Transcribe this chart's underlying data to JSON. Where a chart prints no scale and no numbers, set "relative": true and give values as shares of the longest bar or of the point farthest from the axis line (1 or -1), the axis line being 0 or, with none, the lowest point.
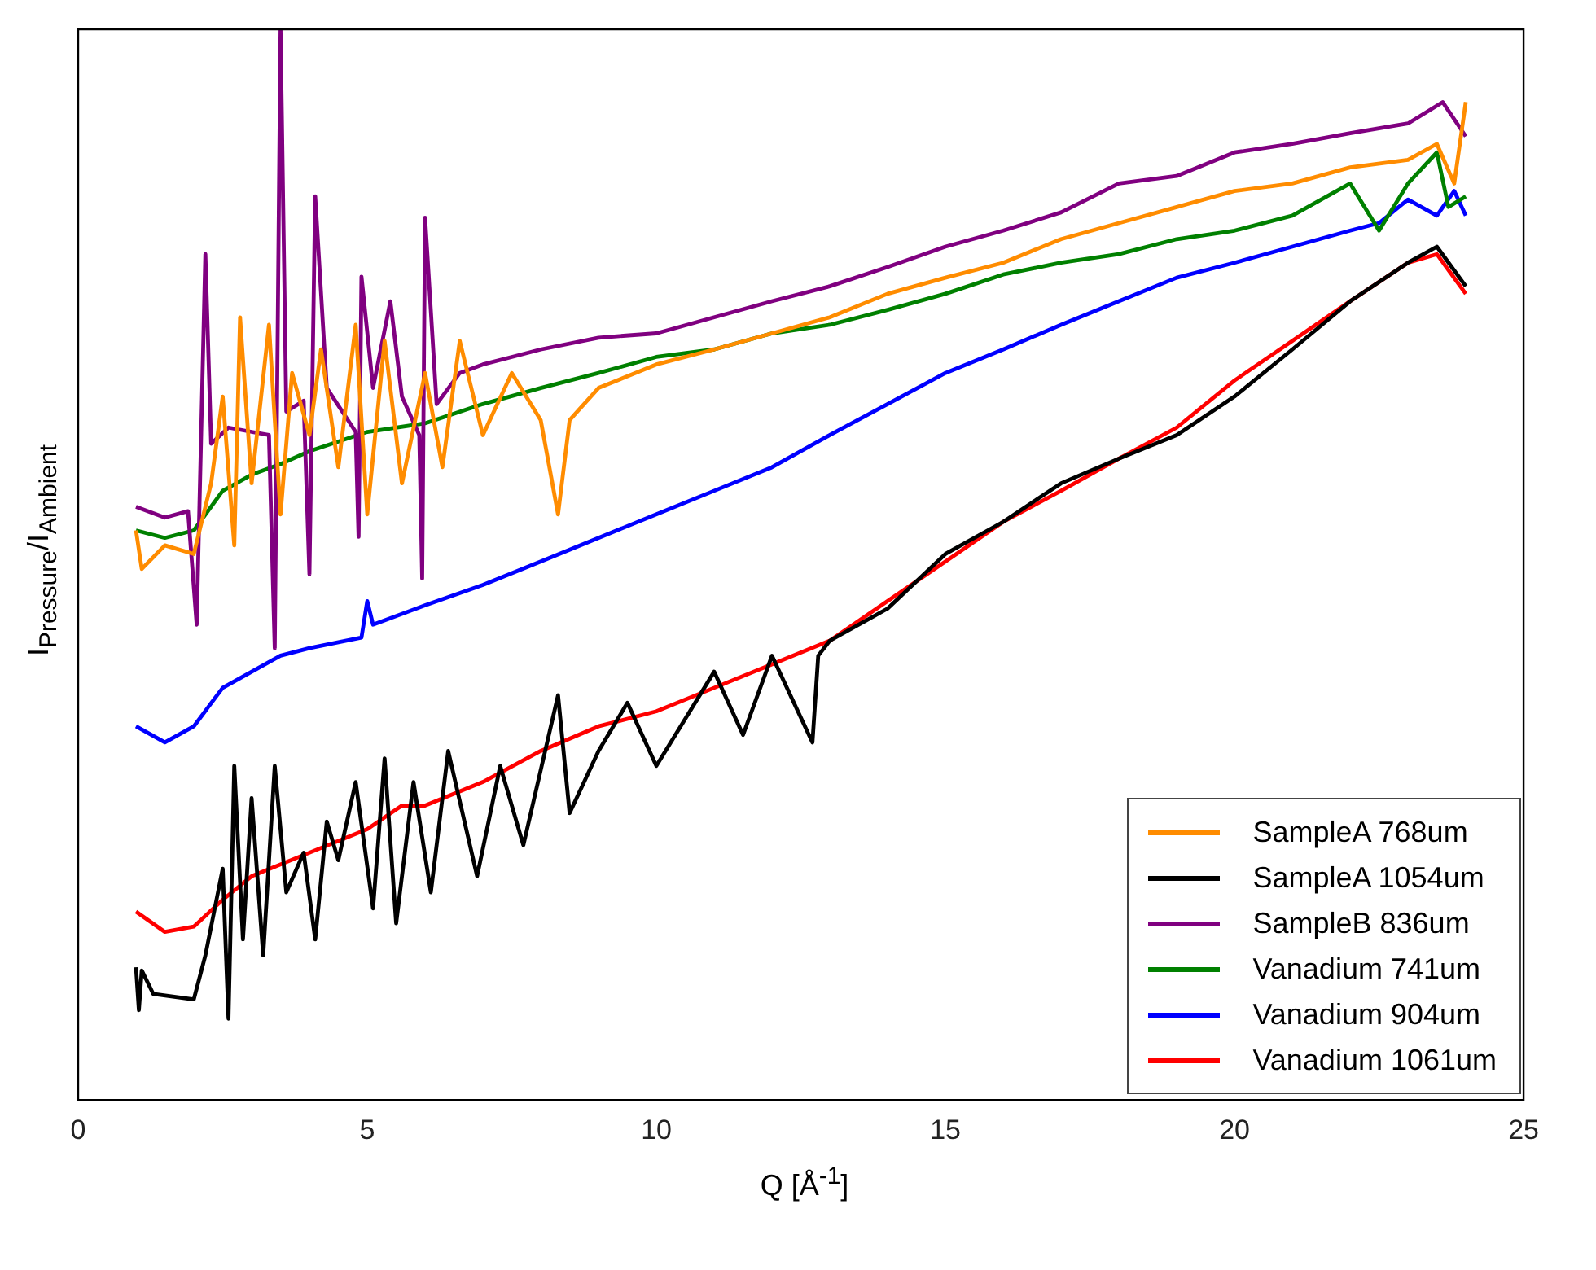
{
  "chart_data": {
    "type": "line",
    "relative": true,
    "xlabel": "Q [Å$^{-1}$]",
    "ylabel": "I$_{Pressure}$/I$_{Ambient}$",
    "xlim": [
      0,
      25
    ],
    "xticks": [
      0,
      5,
      10,
      15,
      20,
      25
    ],
    "grid": false,
    "legend": "bottom right",
    "marker": "none",
    "line_style": "solid",
    "series": [
      {
        "name": "SampleA 768um",
        "color": "#ff8c00",
        "x": [
          1,
          1.1,
          1.5,
          2,
          2.3,
          2.5,
          2.7,
          2.8,
          3,
          3.3,
          3.5,
          3.7,
          4,
          4.2,
          4.5,
          4.8,
          5,
          5.3,
          5.6,
          6,
          6.3,
          6.6,
          7,
          7.5,
          8,
          8.3,
          8.5,
          9,
          10,
          11,
          12,
          13,
          14,
          15,
          16,
          17,
          18,
          19,
          20,
          21,
          22,
          23,
          23.5,
          23.8,
          24
        ],
        "values": [
          0.532,
          0.496,
          0.518,
          0.51,
          0.576,
          0.657,
          0.518,
          0.731,
          0.576,
          0.724,
          0.547,
          0.679,
          0.621,
          0.701,
          0.591,
          0.724,
          0.547,
          0.709,
          0.576,
          0.679,
          0.591,
          0.709,
          0.621,
          0.679,
          0.635,
          0.547,
          0.635,
          0.665,
          0.687,
          0.701,
          0.716,
          0.731,
          0.753,
          0.768,
          0.782,
          0.804,
          0.819,
          0.834,
          0.849,
          0.856,
          0.871,
          0.878,
          0.893,
          0.856,
          0.932
        ]
      },
      {
        "name": "SampleA 1054um",
        "color": "#000000",
        "x": [
          1,
          1.05,
          1.1,
          1.3,
          2,
          2.2,
          2.5,
          2.6,
          2.7,
          2.85,
          3,
          3.2,
          3.4,
          3.6,
          3.9,
          4.1,
          4.3,
          4.5,
          4.8,
          5.1,
          5.3,
          5.5,
          5.8,
          6.1,
          6.4,
          6.9,
          7.3,
          7.7,
          8.3,
          8.5,
          9,
          9.5,
          10,
          10.5,
          11,
          11.5,
          12,
          12.7,
          12.8,
          13,
          14,
          15,
          16,
          17,
          18,
          19,
          20,
          21,
          22,
          23,
          23.5,
          24
        ],
        "values": [
          0.124,
          0.084,
          0.121,
          0.099,
          0.094,
          0.135,
          0.216,
          0.076,
          0.312,
          0.15,
          0.282,
          0.135,
          0.312,
          0.194,
          0.231,
          0.15,
          0.26,
          0.224,
          0.297,
          0.179,
          0.319,
          0.165,
          0.297,
          0.194,
          0.326,
          0.209,
          0.312,
          0.238,
          0.378,
          0.268,
          0.326,
          0.371,
          0.312,
          0.356,
          0.4,
          0.341,
          0.415,
          0.334,
          0.415,
          0.429,
          0.459,
          0.51,
          0.54,
          0.576,
          0.599,
          0.621,
          0.657,
          0.701,
          0.746,
          0.782,
          0.797,
          0.76
        ]
      },
      {
        "name": "SampleB 836um",
        "color": "#800080",
        "x": [
          1,
          1.5,
          1.9,
          2.05,
          2.2,
          2.3,
          2.6,
          3,
          3.3,
          3.4,
          3.5,
          3.6,
          3.9,
          4,
          4.1,
          4.3,
          4.8,
          4.85,
          4.9,
          5.1,
          5.4,
          5.6,
          5.9,
          5.95,
          6,
          6.2,
          6.6,
          7,
          7.5,
          8,
          9,
          10,
          11,
          12,
          13,
          14,
          15,
          16,
          17,
          18,
          19,
          20,
          21,
          22,
          23,
          23.6,
          24
        ],
        "values": [
          0.554,
          0.544,
          0.55,
          0.444,
          0.79,
          0.613,
          0.628,
          0.624,
          0.621,
          0.422,
          1.0,
          0.643,
          0.653,
          0.491,
          0.844,
          0.665,
          0.624,
          0.526,
          0.769,
          0.665,
          0.746,
          0.657,
          0.621,
          0.487,
          0.824,
          0.65,
          0.679,
          0.687,
          0.694,
          0.701,
          0.712,
          0.716,
          0.731,
          0.746,
          0.76,
          0.778,
          0.797,
          0.812,
          0.829,
          0.856,
          0.863,
          0.885,
          0.893,
          0.903,
          0.912,
          0.932,
          0.9
        ]
      },
      {
        "name": "Vanadium 741um",
        "color": "#008000",
        "x": [
          1,
          1.5,
          2,
          2.5,
          3,
          3.5,
          4,
          5,
          6,
          7,
          8,
          9,
          10,
          11,
          12,
          13,
          14,
          15,
          16,
          17,
          18,
          19,
          20,
          21,
          22,
          22.5,
          23,
          23.5,
          23.7,
          24
        ],
        "values": [
          0.532,
          0.525,
          0.532,
          0.569,
          0.584,
          0.594,
          0.606,
          0.624,
          0.632,
          0.65,
          0.665,
          0.679,
          0.694,
          0.701,
          0.716,
          0.724,
          0.738,
          0.753,
          0.771,
          0.782,
          0.79,
          0.804,
          0.812,
          0.826,
          0.856,
          0.812,
          0.856,
          0.885,
          0.834,
          0.844
        ]
      },
      {
        "name": "Vanadium 904um",
        "color": "#0000ff",
        "x": [
          1,
          1.5,
          2,
          2.5,
          3,
          3.5,
          4,
          4.9,
          5,
          5.1,
          6,
          7,
          8,
          9,
          10,
          11,
          12,
          13,
          14,
          15,
          16,
          17,
          18,
          19,
          20,
          21,
          22,
          22.5,
          23,
          23.5,
          23.8,
          24
        ],
        "values": [
          0.349,
          0.334,
          0.349,
          0.385,
          0.4,
          0.415,
          0.422,
          0.432,
          0.466,
          0.444,
          0.462,
          0.481,
          0.503,
          0.525,
          0.547,
          0.569,
          0.591,
          0.621,
          0.65,
          0.679,
          0.701,
          0.724,
          0.746,
          0.768,
          0.782,
          0.797,
          0.812,
          0.819,
          0.841,
          0.826,
          0.849,
          0.826
        ]
      },
      {
        "name": "Vanadium 1061um",
        "color": "#ff0000",
        "x": [
          1,
          1.5,
          2,
          2.5,
          3,
          4,
          5,
          5.6,
          6,
          7,
          8,
          9,
          10,
          11,
          12,
          13,
          14,
          15,
          16,
          17,
          18,
          19,
          20,
          21,
          22,
          23,
          23.5,
          24
        ],
        "values": [
          0.176,
          0.157,
          0.162,
          0.187,
          0.209,
          0.231,
          0.253,
          0.275,
          0.275,
          0.297,
          0.326,
          0.349,
          0.363,
          0.385,
          0.407,
          0.429,
          0.466,
          0.503,
          0.54,
          0.569,
          0.599,
          0.628,
          0.672,
          0.709,
          0.746,
          0.782,
          0.79,
          0.753
        ]
      }
    ]
  }
}
